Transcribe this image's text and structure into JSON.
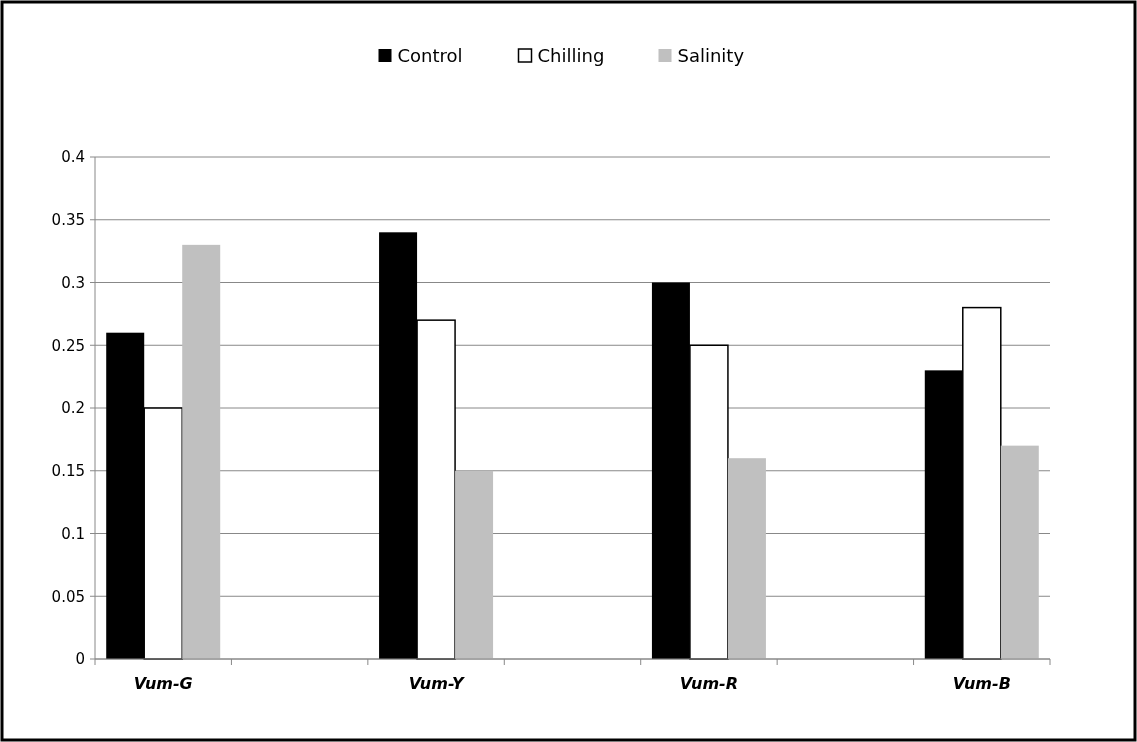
{
  "chart_data": {
    "type": "bar",
    "categories": [
      "Vum-G",
      null,
      "Vum-Y",
      null,
      "Vum-R",
      null,
      "Vum-B"
    ],
    "series": [
      {
        "name": "Control",
        "color": "#000000",
        "values": [
          0.26,
          null,
          0.34,
          null,
          0.3,
          null,
          0.23
        ]
      },
      {
        "name": "Chilling",
        "color": "#ffffff",
        "values": [
          0.2,
          null,
          0.27,
          null,
          0.25,
          null,
          0.28
        ]
      },
      {
        "name": "Salinity",
        "color": "#c0c0c0",
        "values": [
          0.33,
          null,
          0.15,
          null,
          0.16,
          null,
          0.17
        ]
      }
    ],
    "ylim": [
      0,
      0.4
    ],
    "yticks": [
      0,
      0.05,
      0.1,
      0.15,
      0.2,
      0.25,
      0.3,
      0.35,
      0.4
    ],
    "grid": "y",
    "legend": "top"
  }
}
